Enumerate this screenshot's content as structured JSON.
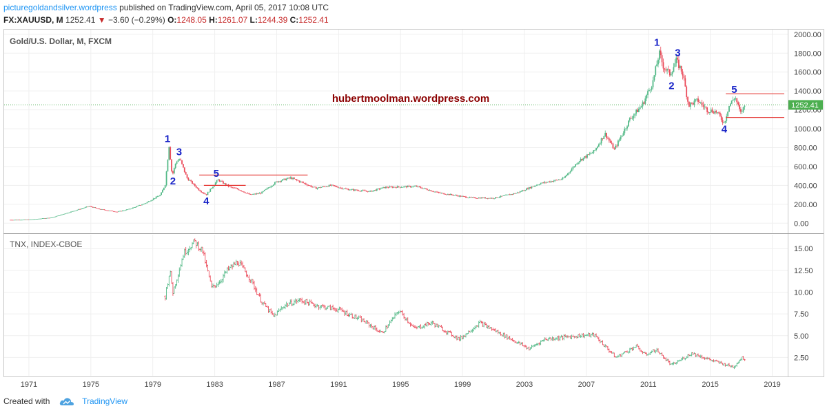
{
  "header": {
    "site": "picturegoldandsilver.wordpress",
    "published": "published on TradingView.com, April 05, 2017 10:08 UTC",
    "symbol": "FX:XAUUSD, M",
    "last": "1252.41",
    "change_arrow": "▼",
    "change": "−3.60 (−0.29%)",
    "o_label": "O:",
    "o_value": "1248.05",
    "h_label": "H:",
    "h_value": "1261.07",
    "l_label": "L:",
    "l_value": "1244.39",
    "c_label": "C:",
    "c_value": "1252.41"
  },
  "footer": {
    "created": "Created with",
    "brand": "TradingView"
  },
  "colors": {
    "up": "#53b987",
    "down": "#eb4d5c",
    "wave_label": "#1a25c8",
    "annotation": "#8b0000",
    "hline": "#e53935",
    "price_tag": "#4caf50"
  },
  "chart_data": [
    {
      "type": "candlestick",
      "title": "Gold/U.S. Dollar, M, FXCM",
      "x_start": 1969.4,
      "x_end": 2020.0,
      "ylim": [
        -100,
        2050
      ],
      "y_ticks": [
        "0.00",
        "200.00",
        "400.00",
        "600.00",
        "800.00",
        "1000.00",
        "1200.00",
        "1400.00",
        "1600.00",
        "1800.00",
        "2000.00"
      ],
      "y_tick_values": [
        0,
        200,
        400,
        600,
        800,
        1000,
        1200,
        1400,
        1600,
        1800,
        2000
      ],
      "last_price_label": "1252.41",
      "last_price": 1252.41,
      "anchors": [
        [
          1969.8,
          35
        ],
        [
          1971,
          37
        ],
        [
          1972.5,
          60
        ],
        [
          1973.5,
          110
        ],
        [
          1974.9,
          180
        ],
        [
          1975.5,
          150
        ],
        [
          1976.7,
          120
        ],
        [
          1977.5,
          150
        ],
        [
          1978.5,
          210
        ],
        [
          1979.5,
          300
        ],
        [
          1979.8,
          410
        ],
        [
          1980.05,
          820
        ],
        [
          1980.25,
          500
        ],
        [
          1980.5,
          650
        ],
        [
          1980.75,
          680
        ],
        [
          1981.2,
          480
        ],
        [
          1982.0,
          350
        ],
        [
          1982.45,
          300
        ],
        [
          1983.2,
          460
        ],
        [
          1984.0,
          380
        ],
        [
          1984.5,
          360
        ],
        [
          1985.3,
          300
        ],
        [
          1986.0,
          320
        ],
        [
          1987.0,
          440
        ],
        [
          1987.9,
          480
        ],
        [
          1988.8,
          420
        ],
        [
          1989.5,
          370
        ],
        [
          1990.5,
          400
        ],
        [
          1991.5,
          360
        ],
        [
          1993.0,
          335
        ],
        [
          1994.0,
          380
        ],
        [
          1996.0,
          390
        ],
        [
          1997.5,
          320
        ],
        [
          1999.5,
          270
        ],
        [
          2001.0,
          265
        ],
        [
          2002.5,
          320
        ],
        [
          2004.0,
          420
        ],
        [
          2005.5,
          470
        ],
        [
          2006.5,
          660
        ],
        [
          2007.5,
          760
        ],
        [
          2008.2,
          950
        ],
        [
          2008.8,
          780
        ],
        [
          2009.8,
          1100
        ],
        [
          2010.6,
          1250
        ],
        [
          2011.3,
          1500
        ],
        [
          2011.7,
          1800
        ],
        [
          2012.0,
          1650
        ],
        [
          2012.4,
          1580
        ],
        [
          2012.8,
          1720
        ],
        [
          2013.2,
          1600
        ],
        [
          2013.6,
          1250
        ],
        [
          2014.2,
          1300
        ],
        [
          2014.8,
          1200
        ],
        [
          2015.4,
          1180
        ],
        [
          2015.9,
          1060
        ],
        [
          2016.2,
          1240
        ],
        [
          2016.6,
          1340
        ],
        [
          2016.95,
          1160
        ],
        [
          2017.25,
          1252
        ]
      ],
      "annotation": "hubertmoolman.wordpress.com",
      "wave_labels": [
        {
          "text": "1",
          "x": 1979.95,
          "y": 860
        },
        {
          "text": "2",
          "x": 1980.3,
          "y": 410
        },
        {
          "text": "3",
          "x": 1980.7,
          "y": 720
        },
        {
          "text": "4",
          "x": 1982.45,
          "y": 200
        },
        {
          "text": "5",
          "x": 1983.1,
          "y": 490
        },
        {
          "text": "1",
          "x": 2011.55,
          "y": 1880
        },
        {
          "text": "2",
          "x": 2012.5,
          "y": 1420
        },
        {
          "text": "3",
          "x": 2012.9,
          "y": 1770
        },
        {
          "text": "4",
          "x": 2015.9,
          "y": 960
        },
        {
          "text": "5",
          "x": 2016.55,
          "y": 1380
        }
      ],
      "h_lines": [
        {
          "x1": 1982.0,
          "x2": 1989.0,
          "y": 510
        },
        {
          "x1": 1982.3,
          "x2": 1985.0,
          "y": 400
        },
        {
          "x1": 2016.0,
          "x2": 2022.0,
          "y": 1370
        },
        {
          "x1": 2016.0,
          "x2": 2022.0,
          "y": 1120
        }
      ]
    },
    {
      "type": "bar",
      "title": "TNX, INDEX-CBOE",
      "x_start": 1969.4,
      "x_end": 2020.0,
      "ylim": [
        0.4,
        16.6
      ],
      "y_ticks": [
        "2.50",
        "5.00",
        "7.50",
        "10.00",
        "12.50",
        "15.00"
      ],
      "y_tick_values": [
        2.5,
        5,
        7.5,
        10,
        12.5,
        15
      ],
      "anchors": [
        [
          1979.8,
          9.5
        ],
        [
          1980.1,
          12.5
        ],
        [
          1980.3,
          10.0
        ],
        [
          1981.0,
          14.5
        ],
        [
          1981.7,
          15.8
        ],
        [
          1982.2,
          14.8
        ],
        [
          1982.8,
          10.5
        ],
        [
          1983.3,
          11.2
        ],
        [
          1983.8,
          12.5
        ],
        [
          1984.5,
          13.5
        ],
        [
          1985.3,
          11.5
        ],
        [
          1986.0,
          9.0
        ],
        [
          1986.8,
          7.2
        ],
        [
          1987.5,
          8.5
        ],
        [
          1988.5,
          9.1
        ],
        [
          1989.5,
          8.5
        ],
        [
          1991.0,
          8.0
        ],
        [
          1992.5,
          6.8
        ],
        [
          1993.8,
          5.3
        ],
        [
          1994.9,
          7.9
        ],
        [
          1995.9,
          5.8
        ],
        [
          1997.0,
          6.5
        ],
        [
          1998.8,
          4.6
        ],
        [
          2000.1,
          6.5
        ],
        [
          2001.5,
          5.2
        ],
        [
          2003.3,
          3.5
        ],
        [
          2004.3,
          4.6
        ],
        [
          2006.5,
          5.0
        ],
        [
          2007.5,
          5.1
        ],
        [
          2008.9,
          2.5
        ],
        [
          2010.2,
          3.8
        ],
        [
          2010.8,
          2.8
        ],
        [
          2011.5,
          3.4
        ],
        [
          2012.5,
          1.6
        ],
        [
          2013.8,
          3.0
        ],
        [
          2015.2,
          2.1
        ],
        [
          2016.5,
          1.4
        ],
        [
          2017.0,
          2.45
        ],
        [
          2017.25,
          2.35
        ]
      ]
    }
  ],
  "x_axis": {
    "labels": [
      "1971",
      "1975",
      "1979",
      "1983",
      "1987",
      "1991",
      "1995",
      "1999",
      "2003",
      "2007",
      "2011",
      "2015",
      "2019"
    ],
    "values": [
      1971,
      1975,
      1979,
      1983,
      1987,
      1991,
      1995,
      1999,
      2003,
      2007,
      2011,
      2015,
      2019
    ]
  }
}
